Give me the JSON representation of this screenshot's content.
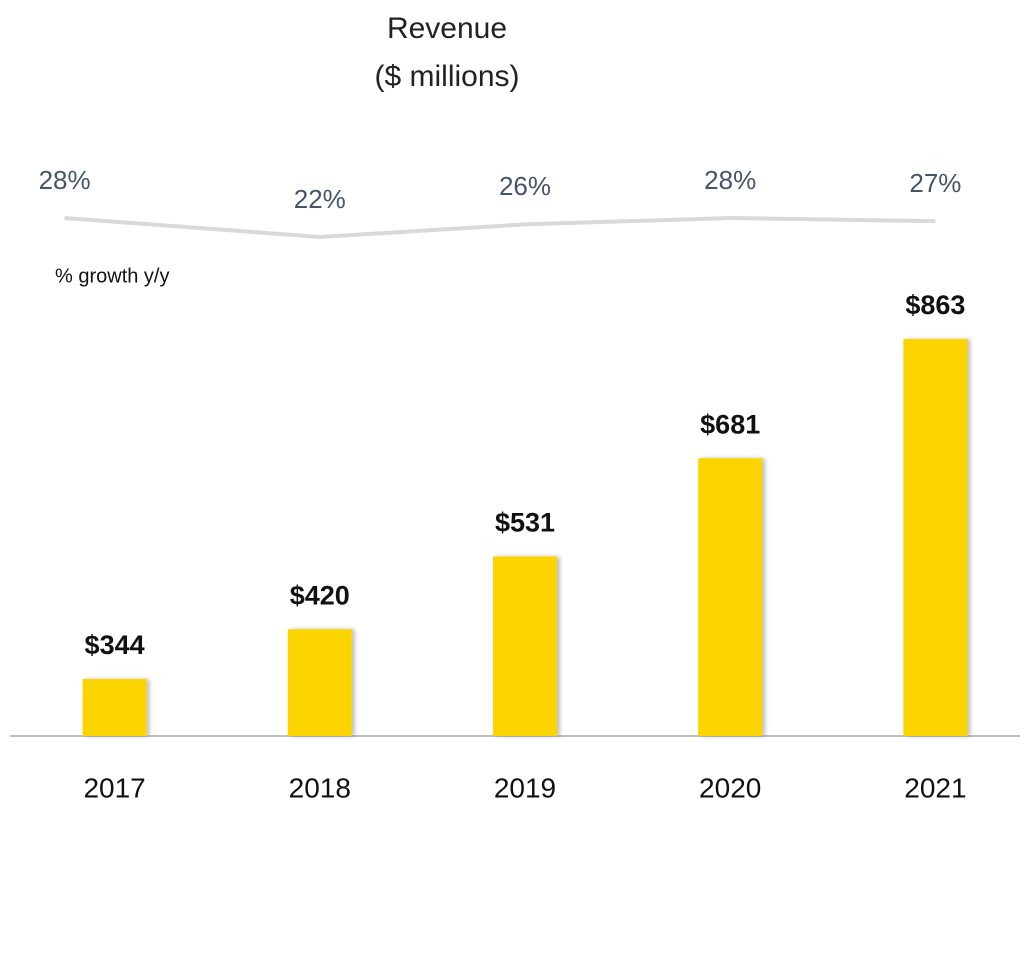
{
  "chart_data": {
    "type": "bar",
    "title": "Revenue",
    "subtitle": "($ millions)",
    "categories": [
      "2017",
      "2018",
      "2019",
      "2020",
      "2021"
    ],
    "series": [
      {
        "type": "bar",
        "color": "#fcd400",
        "values": [
          344,
          420,
          531,
          681,
          863
        ],
        "value_labels": [
          "$344",
          "$420",
          "$531",
          "$681",
          "$863"
        ]
      },
      {
        "type": "line",
        "name": "% growth y/y",
        "color": "#d9d9d9",
        "axis": "y2",
        "values": [
          28,
          22,
          26,
          28,
          27
        ],
        "value_labels": [
          "28%",
          "22%",
          "26%",
          "28%",
          "27%"
        ]
      }
    ],
    "ylim": [
      257,
      950
    ],
    "y2lim": [
      20,
      30
    ]
  }
}
